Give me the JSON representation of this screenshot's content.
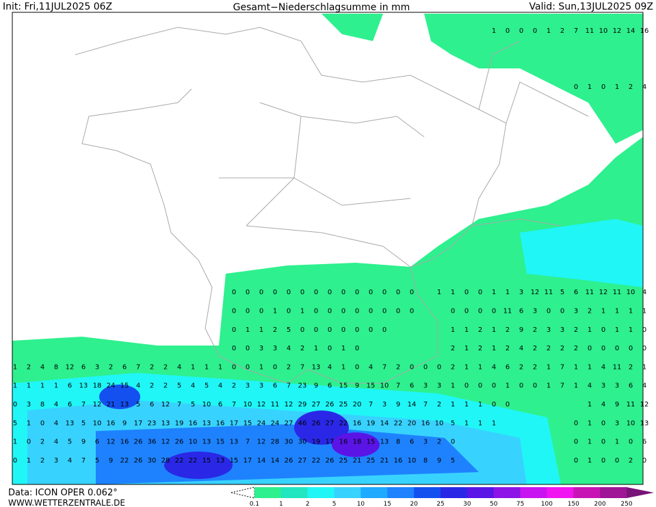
{
  "header": {
    "init": "Init: Fri,11JUL2025 06Z",
    "title": "Gesamt−Niederschlagsumme in mm",
    "valid": "Valid: Sun,13JUL2025 09Z"
  },
  "footer": {
    "data": "Data: ICON OPER 0.062°",
    "site": "WWW.WETTERZENTRALE.DE"
  },
  "legend": {
    "labels": [
      0.1,
      1,
      2,
      5,
      10,
      15,
      20,
      25,
      30,
      50,
      75,
      100,
      150,
      200,
      250
    ],
    "colors": [
      "#2ef08e",
      "#22e6c0",
      "#20f6f6",
      "#38d2ff",
      "#1eaaff",
      "#1e82ff",
      "#1450f0",
      "#2a28e6",
      "#5a14e6",
      "#8c14e6",
      "#c814f0",
      "#f014f0",
      "#c814b4",
      "#a01496",
      "#781478"
    ]
  },
  "map_values": [
    [
      null,
      null,
      null,
      null,
      null,
      null,
      null,
      null,
      null,
      null,
      null,
      null,
      null,
      null,
      null,
      null,
      null,
      null,
      null,
      null,
      null,
      null,
      null,
      null,
      null,
      null,
      null,
      null,
      null,
      null,
      null,
      null,
      null,
      null,
      null,
      1,
      0,
      0,
      0,
      1,
      2,
      7,
      11,
      10,
      12,
      14,
      16
    ],
    null,
    null,
    [
      null,
      null,
      null,
      null,
      null,
      null,
      null,
      null,
      null,
      null,
      null,
      null,
      null,
      null,
      null,
      null,
      null,
      null,
      null,
      null,
      null,
      null,
      null,
      null,
      null,
      null,
      null,
      null,
      null,
      null,
      null,
      null,
      null,
      null,
      null,
      null,
      null,
      null,
      null,
      null,
      null,
      0,
      1,
      0,
      1,
      2,
      4
    ],
    null,
    null,
    null,
    null,
    null,
    null,
    null,
    null,
    null,
    null,
    [
      null,
      null,
      null,
      null,
      null,
      null,
      null,
      null,
      null,
      null,
      null,
      null,
      null,
      null,
      null,
      null,
      0,
      0,
      0,
      0,
      0,
      0,
      0,
      0,
      0,
      0,
      0,
      0,
      0,
      0,
      null,
      1,
      1,
      0,
      0,
      1,
      1,
      3,
      12,
      11,
      5,
      6,
      11,
      12,
      11,
      10,
      4
    ],
    [
      null,
      null,
      null,
      null,
      null,
      null,
      null,
      null,
      null,
      null,
      null,
      null,
      null,
      null,
      null,
      null,
      0,
      0,
      0,
      1,
      0,
      1,
      0,
      0,
      0,
      0,
      0,
      0,
      0,
      0,
      null,
      null,
      0,
      0,
      0,
      0,
      11,
      6,
      3,
      0,
      0,
      3,
      2,
      1,
      1,
      1,
      1
    ],
    [
      null,
      null,
      null,
      null,
      null,
      null,
      null,
      null,
      null,
      null,
      null,
      null,
      null,
      null,
      null,
      null,
      0,
      1,
      1,
      2,
      5,
      0,
      0,
      0,
      0,
      0,
      0,
      0,
      null,
      null,
      null,
      null,
      1,
      1,
      2,
      1,
      2,
      9,
      2,
      3,
      3,
      2,
      1,
      0,
      1,
      1,
      0
    ],
    [
      null,
      null,
      null,
      null,
      null,
      null,
      null,
      null,
      null,
      null,
      null,
      null,
      null,
      null,
      null,
      null,
      0,
      0,
      3,
      3,
      4,
      2,
      1,
      0,
      1,
      0,
      null,
      null,
      null,
      null,
      null,
      null,
      2,
      1,
      2,
      1,
      2,
      4,
      2,
      2,
      2,
      2,
      0,
      0,
      0,
      0,
      0
    ],
    [
      1,
      2,
      4,
      8,
      12,
      6,
      3,
      2,
      6,
      7,
      2,
      2,
      4,
      1,
      1,
      1,
      0,
      0,
      1,
      0,
      2,
      7,
      13,
      4,
      1,
      0,
      4,
      7,
      2,
      0,
      0,
      0,
      2,
      1,
      1,
      4,
      6,
      2,
      2,
      1,
      7,
      1,
      1,
      4,
      11,
      2,
      1
    ],
    [
      1,
      1,
      1,
      1,
      6,
      13,
      18,
      24,
      15,
      4,
      2,
      2,
      5,
      4,
      5,
      4,
      2,
      3,
      3,
      6,
      7,
      23,
      9,
      6,
      15,
      9,
      15,
      10,
      7,
      6,
      3,
      3,
      1,
      0,
      0,
      0,
      1,
      0,
      0,
      1,
      7,
      1,
      4,
      3,
      3,
      6,
      4
    ],
    [
      0,
      3,
      8,
      4,
      6,
      7,
      12,
      21,
      13,
      5,
      6,
      12,
      7,
      5,
      10,
      6,
      7,
      10,
      12,
      11,
      12,
      29,
      27,
      26,
      25,
      20,
      7,
      3,
      9,
      14,
      7,
      2,
      1,
      1,
      1,
      0,
      0,
      null,
      null,
      null,
      null,
      null,
      1,
      4,
      9,
      11,
      12
    ],
    [
      5,
      1,
      0,
      4,
      13,
      5,
      10,
      16,
      9,
      17,
      23,
      13,
      19,
      16,
      13,
      16,
      17,
      15,
      24,
      24,
      27,
      46,
      26,
      27,
      22,
      16,
      19,
      14,
      22,
      20,
      16,
      10,
      5,
      1,
      1,
      1,
      null,
      null,
      null,
      null,
      null,
      0,
      1,
      0,
      3,
      10,
      13
    ],
    [
      1,
      0,
      2,
      4,
      5,
      9,
      6,
      12,
      16,
      26,
      36,
      12,
      26,
      10,
      13,
      15,
      13,
      7,
      12,
      28,
      30,
      30,
      19,
      17,
      16,
      18,
      15,
      13,
      8,
      6,
      3,
      2,
      0,
      null,
      null,
      null,
      null,
      null,
      null,
      null,
      null,
      0,
      1,
      0,
      1,
      0,
      6
    ],
    [
      0,
      1,
      2,
      3,
      4,
      7,
      5,
      9,
      22,
      26,
      30,
      28,
      22,
      22,
      15,
      13,
      15,
      17,
      14,
      14,
      26,
      27,
      22,
      26,
      25,
      21,
      25,
      21,
      16,
      10,
      8,
      9,
      5,
      null,
      null,
      null,
      null,
      null,
      null,
      null,
      null,
      0,
      1,
      0,
      0,
      2,
      0
    ]
  ]
}
